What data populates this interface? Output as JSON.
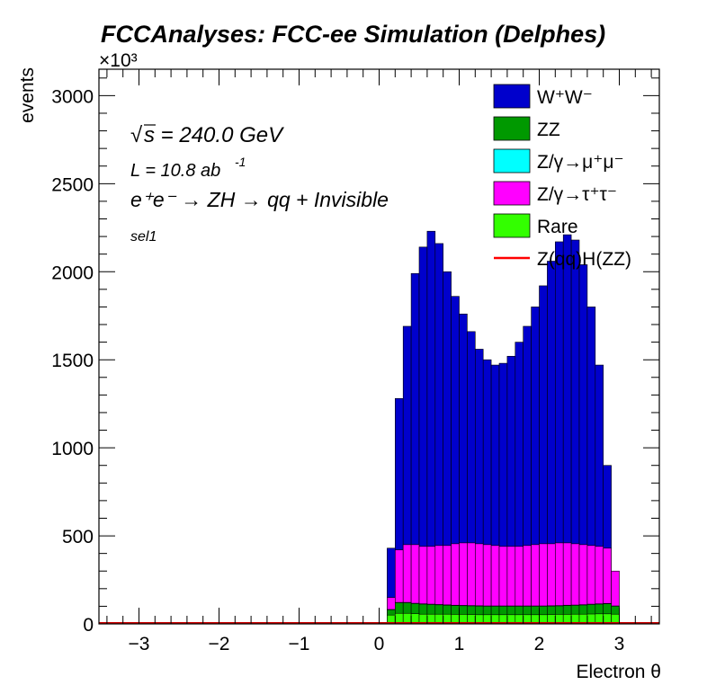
{
  "chart_data": {
    "type": "bar",
    "stacked": true,
    "title": "FCCAnalyses: FCC-ee Simulation (Delphes)",
    "xlabel": "Electron θ",
    "ylabel": "events",
    "y_multiplier_label": "×10³",
    "xlim": [
      -3.5,
      3.5
    ],
    "ylim": [
      0,
      3150
    ],
    "x_ticks": [
      -3,
      -2,
      -1,
      0,
      1,
      2,
      3
    ],
    "x_tick_labels": [
      "−3",
      "−2",
      "−1",
      "0",
      "1",
      "2",
      "3"
    ],
    "y_ticks": [
      0,
      500,
      1000,
      1500,
      2000,
      2500,
      3000
    ],
    "y_tick_labels": [
      "0",
      "500",
      "1000",
      "1500",
      "2000",
      "2500",
      "3000"
    ],
    "annotations": {
      "sqrt_s": "s = 240.0 GeV",
      "sqrt_symbol": "√",
      "lumi_prefix": "L = 10.8 ab",
      "lumi_exp": "-1",
      "process": "e⁺e⁻ → ZH → qq + Invisible",
      "selection": "sel1"
    },
    "legend_position": "top-right",
    "bin_edges": [
      0.1,
      0.2,
      0.3,
      0.4,
      0.5,
      0.6,
      0.7,
      0.8,
      0.9,
      1.0,
      1.1,
      1.2,
      1.3,
      1.4,
      1.5,
      1.6,
      1.7,
      1.8,
      1.9,
      2.0,
      2.1,
      2.2,
      2.3,
      2.4,
      2.5,
      2.6,
      2.7,
      2.8,
      2.9,
      3.0
    ],
    "series": [
      {
        "name": "Rare",
        "color": "#33ff00",
        "stacked_top": [
          50,
          60,
          60,
          58,
          55,
          55,
          55,
          55,
          54,
          54,
          53,
          52,
          52,
          52,
          52,
          52,
          52,
          52,
          52,
          52,
          53,
          54,
          54,
          55,
          55,
          56,
          57,
          57,
          55
        ]
      },
      {
        "name": "ZZ",
        "color": "#009900",
        "stacked_top": [
          80,
          120,
          120,
          115,
          112,
          110,
          108,
          106,
          104,
          103,
          102,
          101,
          100,
          100,
          100,
          100,
          100,
          100,
          100,
          100,
          101,
          102,
          104,
          105,
          107,
          110,
          112,
          114,
          100
        ]
      },
      {
        "name": "Z/γ→μ⁺μ⁻",
        "color": "#00ffff",
        "stacked_top": [
          82,
          122,
          122,
          117,
          114,
          112,
          110,
          108,
          106,
          105,
          104,
          103,
          102,
          102,
          102,
          102,
          102,
          102,
          102,
          102,
          103,
          104,
          106,
          107,
          109,
          112,
          114,
          116,
          102
        ]
      },
      {
        "name": "Z/γ→τ⁺τ⁻",
        "color": "#ff00ff",
        "stacked_top": [
          150,
          420,
          450,
          450,
          440,
          440,
          445,
          445,
          455,
          460,
          460,
          455,
          450,
          445,
          440,
          440,
          440,
          445,
          450,
          455,
          455,
          460,
          460,
          455,
          450,
          445,
          440,
          430,
          300
        ]
      },
      {
        "name": "W⁺W⁻",
        "color": "#0000cc",
        "stacked_top": [
          430,
          1280,
          1690,
          1990,
          2140,
          2230,
          2160,
          2000,
          1860,
          1760,
          1660,
          1560,
          1500,
          1470,
          1480,
          1520,
          1600,
          1690,
          1800,
          1920,
          2060,
          2170,
          2210,
          2180,
          2040,
          1800,
          1470,
          900,
          0
        ]
      },
      {
        "name": "Z(qq)H(ZZ)",
        "color": "#ff0000",
        "line": true,
        "values": []
      }
    ],
    "legend_entries": [
      {
        "label": "W⁺W⁻",
        "color": "#0000cc",
        "kind": "fill"
      },
      {
        "label": "ZZ",
        "color": "#009900",
        "kind": "fill"
      },
      {
        "label": "Z/γ→μ⁺μ⁻",
        "color": "#00ffff",
        "kind": "fill"
      },
      {
        "label": "Z/γ→τ⁺τ⁻",
        "color": "#ff00ff",
        "kind": "fill"
      },
      {
        "label": "Rare",
        "color": "#33ff00",
        "kind": "fill"
      },
      {
        "label": "Z(qq)H(ZZ)",
        "color": "#ff0000",
        "kind": "line"
      }
    ]
  }
}
